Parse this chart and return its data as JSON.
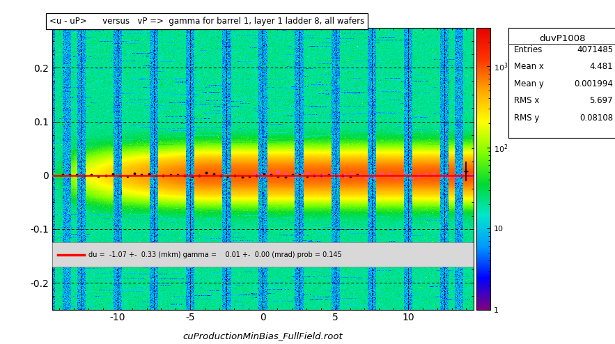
{
  "title": "<u - uP>      versus   vP =>  gamma for barrel 1, layer 1 ladder 8, all wafers",
  "xlabel": "cuProductionMinBias_FullField.root",
  "stats_title": "duvP1008",
  "entries": "4071485",
  "mean_x": "4.481",
  "mean_y": "0.001994",
  "rms_x": "5.697",
  "rms_y": "0.08108",
  "fit_text": "du =  -1.07 +-  0.33 (mkm) gamma =    0.01 +-  0.00 (mrad) prob = 0.145",
  "xmin": -14.5,
  "xmax": 14.5,
  "ymin": -0.25,
  "ymax": 0.275,
  "colorbar_min": 1,
  "colorbar_max": 3000,
  "background_color": "#ffffff",
  "dashed_lines_x": [
    -12.5,
    -10,
    -7.5,
    -5,
    -2.5,
    0,
    2.5,
    5,
    7.5,
    10,
    12.5
  ],
  "dashed_lines_y": [
    -0.2,
    -0.1,
    0.0,
    0.1,
    0.2
  ],
  "stripe_positions": [
    -13.5,
    -12.5,
    -10.0,
    -7.5,
    -5.0,
    -2.5,
    0.0,
    2.5,
    5.0,
    7.5,
    10.0,
    12.5,
    13.5
  ],
  "legend_ylo": -0.17,
  "legend_yhi": -0.125
}
